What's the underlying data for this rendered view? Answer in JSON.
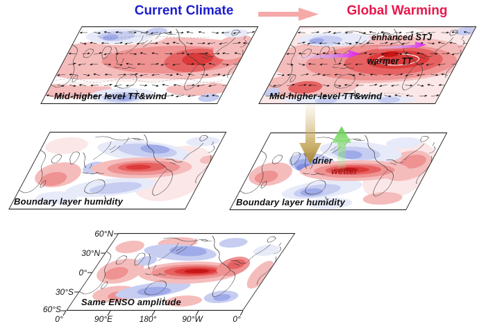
{
  "header": {
    "current_title": "Current Climate",
    "warming_title": "Global Warming"
  },
  "panels": {
    "tt_current": {
      "label": "Mid-higher level TT&wind"
    },
    "tt_warming": {
      "label": "Mid-higher level TT&wind",
      "annotations": {
        "stj": "enhanced STJ",
        "warmer": "warmer TT"
      }
    },
    "humidity_current": {
      "label": "Boundary layer humidity"
    },
    "humidity_warming": {
      "label": "Boundary layer humidity",
      "annotations": {
        "drier": "drier",
        "wetter": "wetter"
      }
    },
    "enso": {
      "label": "Same ENSO amplitude",
      "y_axis_ticks": [
        "60°N",
        "30°N",
        "0°",
        "30°S",
        "60°S"
      ],
      "x_axis_ticks": [
        "0°",
        "90°E",
        "180°",
        "90°W",
        "0°"
      ]
    }
  },
  "colors": {
    "title_current": "#1c1ccd",
    "title_warming": "#e8174b",
    "transition_arrow": "#f6a9a9",
    "stj_arrow": "#df1ee9",
    "subsidence_arrow": "#b8932e",
    "ascent_arrow": "#60ce4a",
    "wetter_text": "#a61c1c",
    "warm_anomaly": "#dc3a3a",
    "cold_anomaly": "#9fabe8"
  },
  "icons": {
    "transition_arrow": "right-arrow",
    "stj_arrows": "right-arrow",
    "subsidence_arrow": "down-arrow",
    "ascent_arrow": "up-arrow"
  }
}
